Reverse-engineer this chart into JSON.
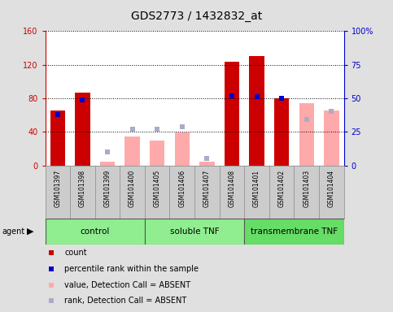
{
  "title": "GDS2773 / 1432832_at",
  "samples": [
    "GSM101397",
    "GSM101398",
    "GSM101399",
    "GSM101400",
    "GSM101405",
    "GSM101406",
    "GSM101407",
    "GSM101408",
    "GSM101401",
    "GSM101402",
    "GSM101403",
    "GSM101404"
  ],
  "detection": [
    "P",
    "P",
    "A",
    "A",
    "A",
    "A",
    "A",
    "P",
    "P",
    "P",
    "A",
    "A"
  ],
  "count_values": [
    65,
    87,
    4,
    0,
    0,
    0,
    0,
    124,
    130,
    80,
    0,
    0
  ],
  "rank_values": [
    38,
    49,
    0,
    0,
    0,
    0,
    0,
    52,
    51,
    50,
    0,
    0
  ],
  "absent_value_bars": [
    0,
    0,
    4,
    34,
    30,
    39,
    4,
    0,
    0,
    0,
    74,
    65
  ],
  "absent_rank_squares": [
    0,
    0,
    10,
    27,
    27,
    29,
    5,
    0,
    0,
    0,
    34,
    40
  ],
  "groups": [
    {
      "label": "control",
      "start": 0,
      "end": 4
    },
    {
      "label": "soluble TNF",
      "start": 4,
      "end": 8
    },
    {
      "label": "transmembrane TNF",
      "start": 8,
      "end": 12
    }
  ],
  "group_colors": [
    "#90EE90",
    "#90EE90",
    "#66DD66"
  ],
  "ylim_left": [
    0,
    160
  ],
  "ylim_right": [
    0,
    100
  ],
  "left_yticks": [
    0,
    40,
    80,
    120,
    160
  ],
  "right_yticks": [
    0,
    25,
    50,
    75,
    100
  ],
  "left_yticklabels": [
    "0",
    "40",
    "80",
    "120",
    "160"
  ],
  "right_yticklabels": [
    "0",
    "25",
    "50",
    "75",
    "100%"
  ],
  "bar_color_present": "#CC0000",
  "bar_color_absent": "#FFAAAA",
  "rank_color_present": "#0000CC",
  "rank_color_absent": "#AAAACC",
  "bg_color": "#E0E0E0",
  "title_color": "#000000",
  "left_axis_color": "#CC0000",
  "right_axis_color": "#0000CC"
}
